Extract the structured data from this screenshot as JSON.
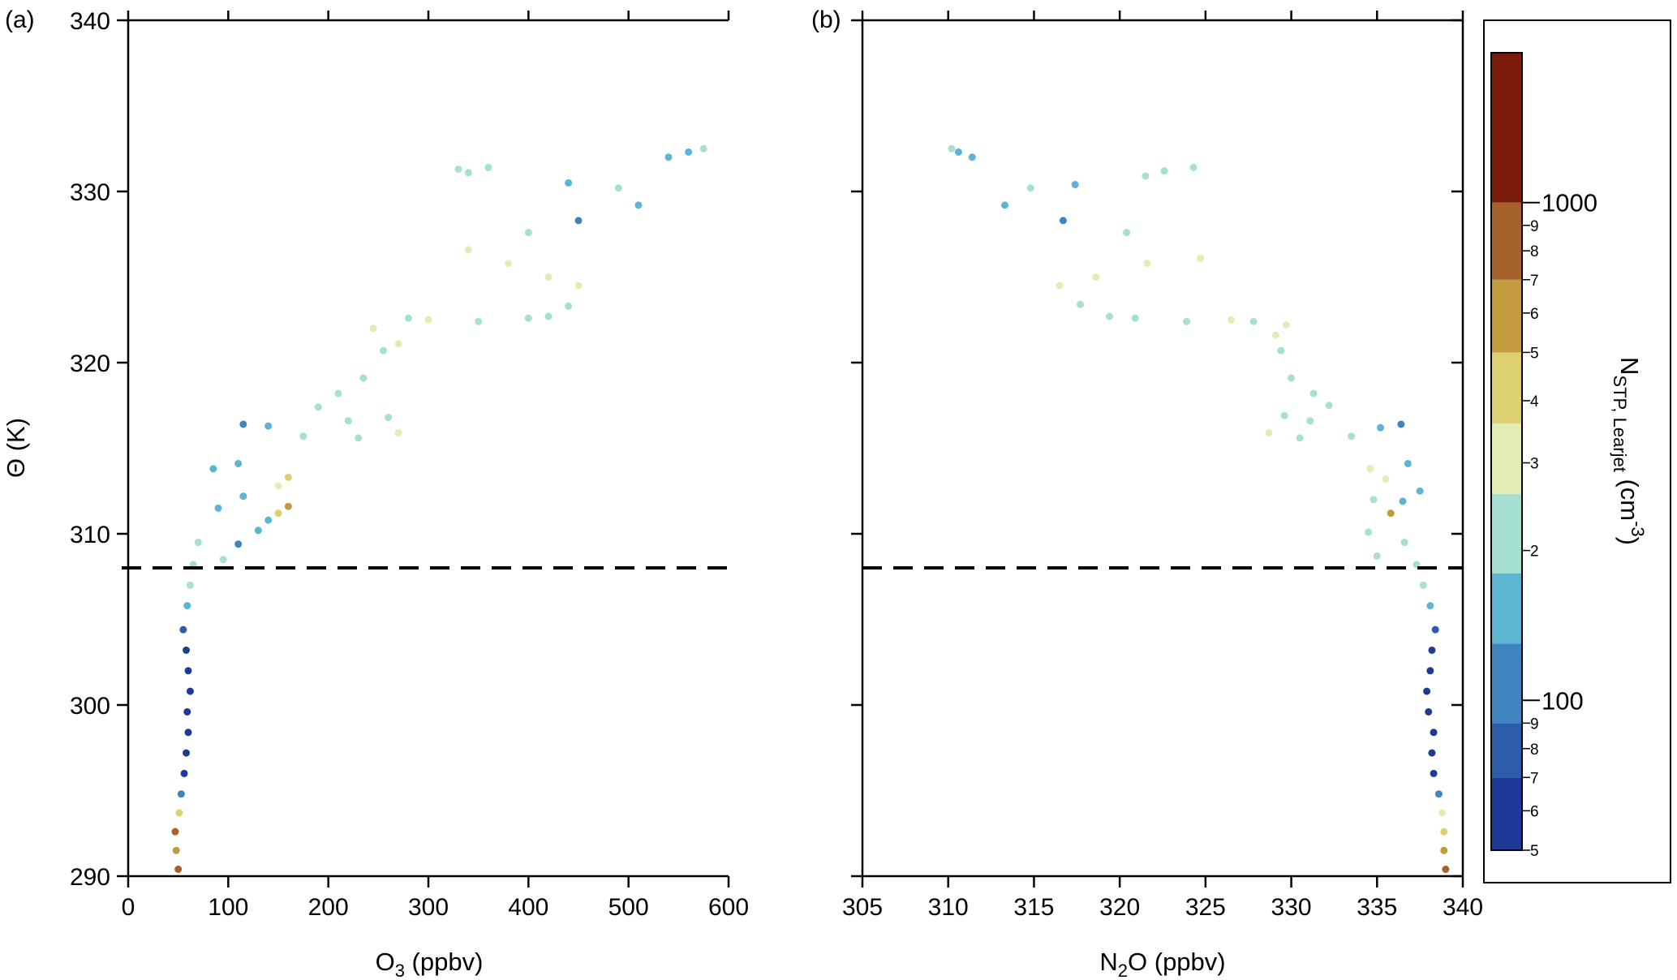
{
  "chart_data": [
    {
      "type": "scatter",
      "panel_label": "(a)",
      "xlabel_main": "O",
      "xlabel_sub": "3",
      "xlabel_units": " (ppbv)",
      "ylabel": "Θ (K)",
      "xlim": [
        0,
        600
      ],
      "ylim": [
        290,
        340
      ],
      "xticks": [
        "0",
        "100",
        "200",
        "300",
        "400",
        "500",
        "600"
      ],
      "yticks": [
        "290",
        "300",
        "310",
        "320",
        "330",
        "340"
      ],
      "reference_line": {
        "theta": 308,
        "style": "dashed"
      },
      "points": [
        [
          50,
          290.4,
          800
        ],
        [
          48,
          291.5,
          500
        ],
        [
          47,
          292.6,
          700
        ],
        [
          51,
          293.7,
          400
        ],
        [
          53,
          294.8,
          90
        ],
        [
          56,
          296,
          40
        ],
        [
          58,
          297.2,
          30
        ],
        [
          60,
          298.4,
          60
        ],
        [
          59,
          299.6,
          30
        ],
        [
          62,
          300.8,
          25
        ],
        [
          60,
          302,
          20
        ],
        [
          58,
          303.2,
          50
        ],
        [
          55,
          304.4,
          80
        ],
        [
          59,
          305.8,
          150
        ],
        [
          62,
          307,
          180
        ],
        [
          65,
          308.2,
          180
        ],
        [
          70,
          309.5,
          200
        ],
        [
          95,
          308.5,
          200
        ],
        [
          110,
          309.4,
          110
        ],
        [
          130,
          310.2,
          150
        ],
        [
          150,
          311.2,
          400
        ],
        [
          160,
          311.6,
          500
        ],
        [
          140,
          310.8,
          150
        ],
        [
          90,
          311.5,
          130
        ],
        [
          115,
          312.2,
          150
        ],
        [
          150,
          312.8,
          350
        ],
        [
          85,
          313.8,
          130
        ],
        [
          110,
          314.1,
          150
        ],
        [
          160,
          313.3,
          450
        ],
        [
          115,
          316.4,
          100
        ],
        [
          140,
          316.3,
          130
        ],
        [
          175,
          315.7,
          200
        ],
        [
          230,
          315.6,
          220
        ],
        [
          270,
          315.9,
          300
        ],
        [
          260,
          316.8,
          250
        ],
        [
          220,
          316.6,
          200
        ],
        [
          190,
          317.4,
          200
        ],
        [
          210,
          318.2,
          200
        ],
        [
          235,
          319.1,
          200
        ],
        [
          255,
          320.7,
          250
        ],
        [
          270,
          321.1,
          300
        ],
        [
          245,
          322,
          300
        ],
        [
          280,
          322.6,
          200
        ],
        [
          300,
          322.5,
          300
        ],
        [
          350,
          322.4,
          220
        ],
        [
          400,
          322.6,
          250
        ],
        [
          420,
          322.7,
          250
        ],
        [
          440,
          323.3,
          220
        ],
        [
          450,
          324.5,
          300
        ],
        [
          420,
          325,
          300
        ],
        [
          380,
          325.8,
          300
        ],
        [
          340,
          326.6,
          300
        ],
        [
          400,
          327.6,
          220
        ],
        [
          450,
          328.3,
          120
        ],
        [
          510,
          329.2,
          150
        ],
        [
          490,
          330.2,
          180
        ],
        [
          440,
          330.5,
          150
        ],
        [
          360,
          331.4,
          220
        ],
        [
          340,
          331.1,
          200
        ],
        [
          330,
          331.3,
          230
        ],
        [
          560,
          332.3,
          150
        ],
        [
          540,
          332,
          150
        ],
        [
          575,
          332.5,
          200
        ]
      ]
    },
    {
      "type": "scatter",
      "panel_label": "(b)",
      "xlabel_main": "N",
      "xlabel_sub": "2",
      "xlabel_units": "O (ppbv)",
      "xlim": [
        305,
        340
      ],
      "ylim": [
        290,
        340
      ],
      "xticks": [
        "305",
        "310",
        "315",
        "320",
        "325",
        "330",
        "335",
        "340"
      ],
      "reference_line": {
        "theta": 308,
        "style": "dashed"
      },
      "points": [
        [
          339,
          290.4,
          800
        ],
        [
          338.9,
          291.5,
          500
        ],
        [
          338.9,
          292.6,
          400
        ],
        [
          338.8,
          293.7,
          300
        ],
        [
          338.6,
          294.8,
          90
        ],
        [
          338.3,
          296,
          40
        ],
        [
          338.2,
          297.2,
          30
        ],
        [
          338.3,
          298.4,
          60
        ],
        [
          338,
          299.6,
          30
        ],
        [
          337.9,
          300.8,
          25
        ],
        [
          338.1,
          302,
          20
        ],
        [
          338.2,
          303.2,
          50
        ],
        [
          338.4,
          304.4,
          80
        ],
        [
          338.1,
          305.8,
          150
        ],
        [
          337.7,
          307,
          180
        ],
        [
          337.3,
          308.2,
          180
        ],
        [
          336.6,
          309.5,
          200
        ],
        [
          335,
          308.7,
          200
        ],
        [
          334.5,
          310.1,
          250
        ],
        [
          335.8,
          311.2,
          500
        ],
        [
          336.5,
          311.9,
          130
        ],
        [
          334.8,
          312,
          200
        ],
        [
          335.5,
          313.2,
          350
        ],
        [
          334.6,
          313.8,
          300
        ],
        [
          336.8,
          314.1,
          150
        ],
        [
          337.5,
          312.5,
          130
        ],
        [
          336.4,
          316.4,
          100
        ],
        [
          335.2,
          316.2,
          130
        ],
        [
          333.5,
          315.7,
          250
        ],
        [
          330.5,
          315.6,
          250
        ],
        [
          328.7,
          315.9,
          300
        ],
        [
          329.6,
          316.9,
          250
        ],
        [
          331.1,
          316.6,
          200
        ],
        [
          332.2,
          317.5,
          200
        ],
        [
          331.3,
          318.2,
          200
        ],
        [
          330,
          319.1,
          200
        ],
        [
          329.4,
          320.7,
          250
        ],
        [
          329.1,
          321.6,
          300
        ],
        [
          329.7,
          322.2,
          300
        ],
        [
          327.8,
          322.4,
          200
        ],
        [
          326.5,
          322.5,
          300
        ],
        [
          323.9,
          322.4,
          220
        ],
        [
          320.9,
          322.6,
          250
        ],
        [
          319.4,
          322.7,
          250
        ],
        [
          317.7,
          323.4,
          200
        ],
        [
          316.5,
          324.5,
          300
        ],
        [
          318.6,
          325,
          300
        ],
        [
          321.6,
          325.8,
          300
        ],
        [
          324.7,
          326.1,
          300
        ],
        [
          320.4,
          327.6,
          220
        ],
        [
          316.7,
          328.3,
          120
        ],
        [
          313.3,
          329.2,
          150
        ],
        [
          314.8,
          330.2,
          180
        ],
        [
          317.4,
          330.4,
          150
        ],
        [
          322.6,
          331.2,
          220
        ],
        [
          324.3,
          331.4,
          200
        ],
        [
          321.5,
          330.9,
          230
        ],
        [
          310.6,
          332.3,
          150
        ],
        [
          311.4,
          332,
          150
        ],
        [
          310.2,
          332.5,
          200
        ]
      ]
    }
  ],
  "colorbar": {
    "title_main": "N",
    "title_sub": "STP, Learjet",
    "title_units": " (cm",
    "title_sup": "-3",
    "title_close": ")",
    "scale": "log",
    "range": [
      50,
      2000
    ],
    "major_ticks": [
      {
        "value": 100,
        "label": "100"
      },
      {
        "value": 1000,
        "label": "1000"
      }
    ],
    "minor_ticks": [
      {
        "value": 50,
        "label": "5"
      },
      {
        "value": 60,
        "label": "6"
      },
      {
        "value": 70,
        "label": "7"
      },
      {
        "value": 80,
        "label": "8"
      },
      {
        "value": 90,
        "label": "9"
      },
      {
        "value": 200,
        "label": "2"
      },
      {
        "value": 300,
        "label": "3"
      },
      {
        "value": 400,
        "label": "4"
      },
      {
        "value": 500,
        "label": "5"
      },
      {
        "value": 600,
        "label": "6"
      },
      {
        "value": 700,
        "label": "7"
      },
      {
        "value": 800,
        "label": "8"
      },
      {
        "value": 900,
        "label": "9"
      }
    ],
    "levels": [
      {
        "from": 50,
        "to": 70,
        "color": "#1e3a99"
      },
      {
        "from": 70,
        "to": 90,
        "color": "#2c5caa"
      },
      {
        "from": 90,
        "to": 130,
        "color": "#3f83bf"
      },
      {
        "from": 130,
        "to": 180,
        "color": "#5cb6d3"
      },
      {
        "from": 180,
        "to": 260,
        "color": "#a6e0d2"
      },
      {
        "from": 260,
        "to": 360,
        "color": "#e4ecb6"
      },
      {
        "from": 360,
        "to": 500,
        "color": "#ddd072"
      },
      {
        "from": 500,
        "to": 700,
        "color": "#c39a3d"
      },
      {
        "from": 700,
        "to": 1000,
        "color": "#a4632a"
      },
      {
        "from": 1000,
        "to": 2000,
        "color": "#7b1b0c"
      }
    ]
  }
}
